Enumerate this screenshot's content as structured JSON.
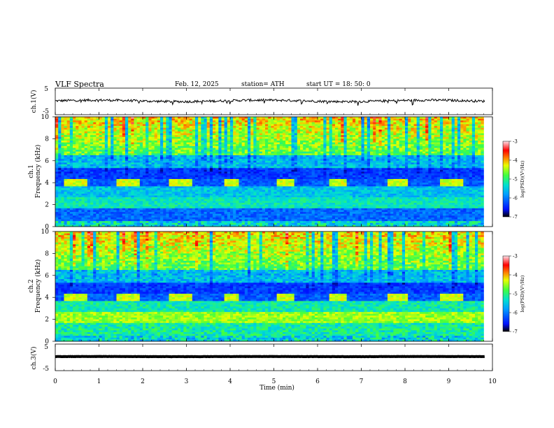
{
  "header": {
    "title": "VLF  Spectra",
    "date": "Feb. 12, 2025",
    "station": "station= ATH",
    "start_ut": "start  UT  =   18: 50: 0"
  },
  "chart_data": [
    {
      "type": "line",
      "name": "ch1-voltage",
      "ylabel": "ch.1(V)",
      "xlim": [
        0,
        10
      ],
      "ylim": [
        -5,
        5
      ],
      "yticks": [
        "5",
        "-5"
      ],
      "baseline_v": 0.2,
      "noise_v": 0.45,
      "data_xmax": 9.82
    },
    {
      "type": "heatmap",
      "name": "ch1-spectrogram",
      "ylabel": "ch.1\nFrequency (kHz)",
      "ylabel_line1": "ch.1",
      "ylabel_line2": "Frequency (kHz)",
      "xlim": [
        0,
        10
      ],
      "ylim": [
        0,
        10
      ],
      "yticks": [
        "0",
        "2",
        "4",
        "6",
        "8",
        "10"
      ],
      "band_khz": [
        3.6,
        4.4
      ],
      "band_segments": [
        [
          0.2,
          0.72
        ],
        [
          1.4,
          1.95
        ],
        [
          2.6,
          3.1
        ],
        [
          3.9,
          4.2
        ],
        [
          5.1,
          5.45
        ],
        [
          6.3,
          6.65
        ],
        [
          7.6,
          8.1
        ],
        [
          8.8,
          9.3
        ]
      ],
      "colorbar": {
        "label": "log(PSD)(V²/Hz)",
        "range": [
          -7,
          -3
        ],
        "ticks": [
          "-3",
          "-4",
          "-5",
          "-6",
          "-7"
        ]
      }
    },
    {
      "type": "heatmap",
      "name": "ch2-spectrogram",
      "ylabel": "ch.2\nFrequency (kHz)",
      "ylabel_line1": "ch.2",
      "ylabel_line2": "Frequency (kHz)",
      "xlim": [
        0,
        10
      ],
      "ylim": [
        0,
        10
      ],
      "yticks": [
        "0",
        "2",
        "4",
        "6",
        "8",
        "10"
      ],
      "band_khz": [
        3.6,
        4.4
      ],
      "band_segments": [
        [
          0.2,
          0.72
        ],
        [
          1.4,
          1.95
        ],
        [
          2.6,
          3.1
        ],
        [
          3.9,
          4.2
        ],
        [
          5.1,
          5.45
        ],
        [
          6.3,
          6.65
        ],
        [
          7.6,
          8.1
        ],
        [
          8.8,
          9.3
        ]
      ],
      "colorbar": {
        "label": "log(PSD)(V²/Hz)",
        "range": [
          -7,
          -3
        ],
        "ticks": [
          "-3",
          "-4",
          "-5",
          "-6",
          "-7"
        ]
      }
    },
    {
      "type": "line",
      "name": "ch3-voltage",
      "ylabel": "ch.3(V)",
      "xlim": [
        0,
        10
      ],
      "ylim": [
        -5,
        5
      ],
      "yticks": [
        "5",
        "-5"
      ],
      "baseline_v": 0.3,
      "noise_v": 0.05,
      "data_xmax": 9.82
    }
  ],
  "x_axis": {
    "label": "Time  (min)",
    "ticks": [
      "0",
      "1",
      "2",
      "3",
      "4",
      "5",
      "6",
      "7",
      "8",
      "9",
      "10"
    ]
  },
  "colors": {
    "colormap": [
      "#000000",
      "#0010ff",
      "#00a0ff",
      "#00e0d0",
      "#40ff40",
      "#e8ff00",
      "#ff8000",
      "#ff0000",
      "#ffe0e8"
    ]
  }
}
